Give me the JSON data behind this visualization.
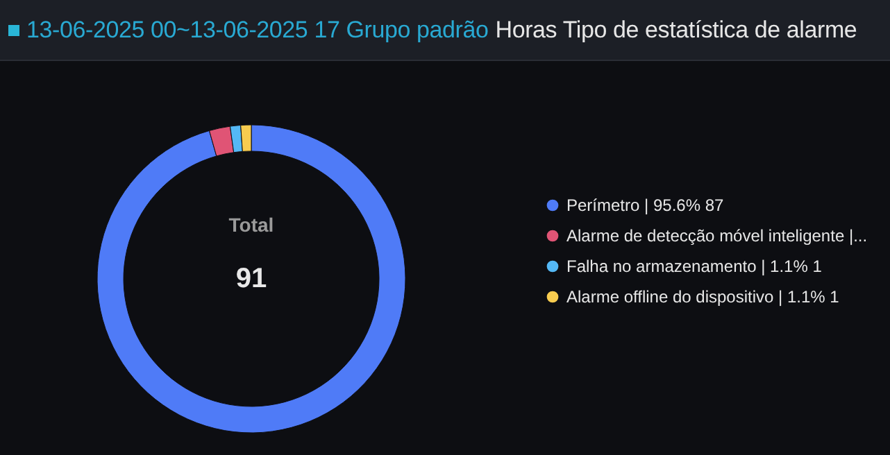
{
  "chart_data": {
    "type": "donut",
    "title": "13-06-2025 00~13-06-2025 17 Grupo padrão",
    "subtitle": "Horas Tipo de estatística de alarme",
    "categories": [
      "Perímetro | 95.6% 87",
      "Alarme de detecção móvel inteligente |...",
      "Falha no armazenamento | 1.1% 1",
      "Alarme offline do dispositivo | 1.1% 1"
    ],
    "values": [
      87,
      2,
      1,
      1
    ],
    "colors": [
      "#4f7bf7",
      "#e05475",
      "#54b8f5",
      "#f8cc4f"
    ],
    "annotations": [
      "Total",
      "91"
    ],
    "legend": "right"
  }
}
